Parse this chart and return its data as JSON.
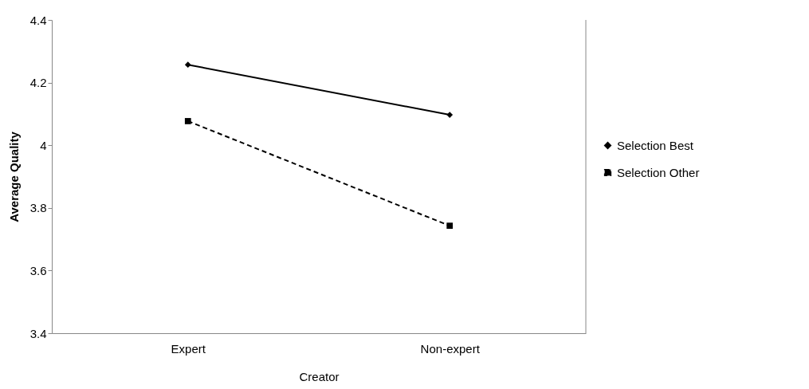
{
  "chart_data": {
    "type": "line",
    "xlabel": "Creator",
    "ylabel": "Average Quality",
    "categories": [
      "Expert",
      "Non-expert"
    ],
    "series": [
      {
        "name": "Selection Best",
        "color": "#000000",
        "values": [
          4.257,
          4.097
        ],
        "marker": "diamond",
        "line_style": "solid"
      },
      {
        "name": "Selection Other",
        "color": "#000000",
        "values": [
          4.077,
          3.743
        ],
        "marker": "square",
        "line_style": "dashed"
      }
    ],
    "ylim": [
      3.4,
      4.4
    ],
    "yticks": [
      3.4,
      3.6,
      3.8,
      {
        "value": 4,
        "label": "4"
      },
      4.2,
      4.4
    ],
    "grid": false,
    "legend": "right"
  }
}
